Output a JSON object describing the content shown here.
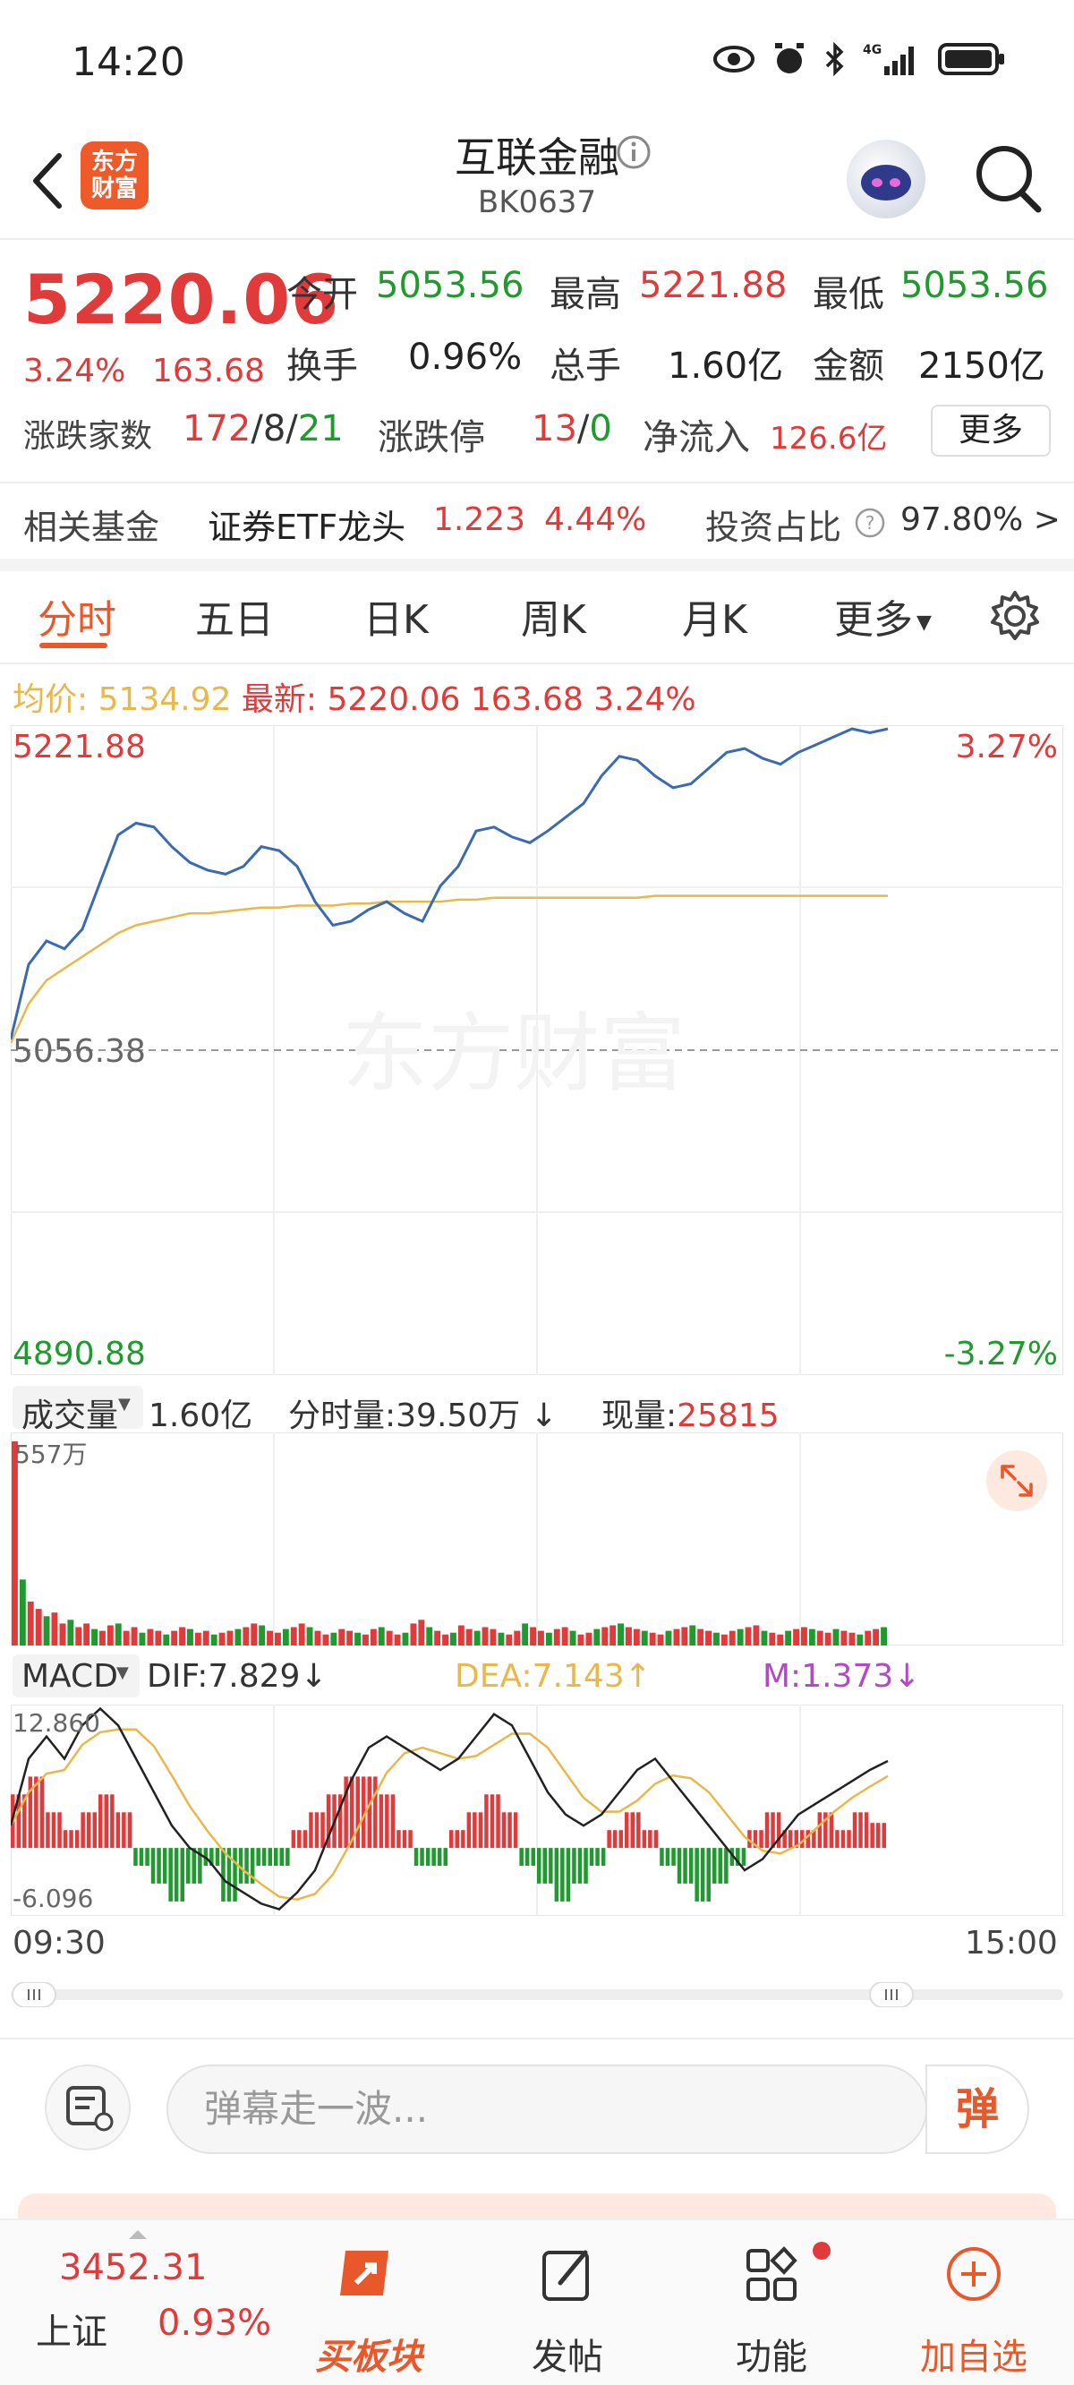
{
  "status_bar": {
    "time": "14:20",
    "network": "4G"
  },
  "header": {
    "title": "互联金融",
    "code": "BK0637",
    "logo_line1": "东方",
    "logo_line2": "财富"
  },
  "quote": {
    "price": "5220.06",
    "change_pct": "3.24%",
    "change_amt": "163.68",
    "open_label": "今开",
    "open": "5053.56",
    "high_label": "最高",
    "high": "5221.88",
    "low_label": "最低",
    "low": "5053.56",
    "turnover_label": "换手",
    "turnover": "0.96%",
    "volume_label": "总手",
    "volume": "1.60亿",
    "amount_label": "金额",
    "amount": "2150亿",
    "adv_dec_label": "涨跌家数",
    "adv": "172",
    "flat": "8",
    "dec": "21",
    "limit_label": "涨跌停",
    "limit_up": "13",
    "limit_down": "0",
    "netflow_label": "净流入",
    "netflow": "126.6亿",
    "more_label": "更多"
  },
  "fund": {
    "label": "相关基金",
    "name": "证券ETF龙头",
    "price": "1.223",
    "pct": "4.44%",
    "invest_label": "投资占比",
    "invest_val": "97.80% >"
  },
  "tabs": [
    "分时",
    "五日",
    "日K",
    "周K",
    "月K",
    "更多"
  ],
  "avg_info": {
    "avg_label": "均价:",
    "avg": "5134.92",
    "latest_label": "最新:",
    "latest": "5220.06",
    "chg": "163.68",
    "pct": "3.24%"
  },
  "main_chart": {
    "top_price": "5221.88",
    "top_pct": "3.27%",
    "mid_price": "5056.38",
    "bottom_price": "4890.88",
    "bottom_pct": "-3.27%",
    "watermark": "东方财富",
    "colors": {
      "price_line": "#3a6ab0",
      "avg_line": "#e8b84a"
    }
  },
  "volume": {
    "selector": "成交量",
    "total": "1.60亿",
    "minute_label": "分时量:",
    "minute": "39.50万",
    "current_label": "现量:",
    "current": "25815",
    "max_label": "557万"
  },
  "macd": {
    "selector": "MACD",
    "dif": "DIF:7.829",
    "dea": "DEA:7.143",
    "m": "M:1.373",
    "max_label": "12.860",
    "min_label": "-6.096"
  },
  "time_axis": {
    "start": "09:30",
    "end": "15:00"
  },
  "danmaku": {
    "placeholder": "弹幕走一波...",
    "send_label": "弹"
  },
  "bottom_nav": {
    "index_value": "3452.31",
    "index_name": "上证",
    "index_pct": "0.93%",
    "items": [
      "买板块",
      "发帖",
      "功能",
      "加自选"
    ]
  },
  "chart_data": [
    {
      "type": "line",
      "title": "",
      "series": [
        {
          "name": "最新",
          "values": [
            5062,
            5100,
            5112,
            5108,
            5118,
            5142,
            5166,
            5172,
            5170,
            5160,
            5152,
            5148,
            5146,
            5150,
            5160,
            5158,
            5150,
            5132,
            5120,
            5122,
            5128,
            5132,
            5126,
            5122,
            5140,
            5150,
            5168,
            5170,
            5165,
            5162,
            5168,
            5175,
            5182,
            5196,
            5206,
            5204,
            5196,
            5190,
            5192,
            5200,
            5208,
            5210,
            5205,
            5202,
            5208,
            5212,
            5216,
            5220,
            5218,
            5220
          ]
        },
        {
          "name": "均价",
          "values": [
            5060,
            5080,
            5092,
            5098,
            5104,
            5110,
            5116,
            5120,
            5122,
            5124,
            5126,
            5126,
            5127,
            5128,
            5129,
            5129,
            5130,
            5130,
            5130,
            5131,
            5131,
            5132,
            5132,
            5132,
            5132,
            5133,
            5133,
            5134,
            5134,
            5134,
            5134,
            5134,
            5134,
            5134,
            5134,
            5134,
            5135,
            5135,
            5135,
            5135,
            5135,
            5135,
            5135,
            5135,
            5135,
            5135,
            5135,
            5135,
            5135,
            5135
          ]
        }
      ],
      "ylim": [
        4890.88,
        5221.88
      ],
      "reference": 5056.38
    },
    {
      "type": "bar",
      "title": "",
      "values": [
        557,
        180,
        120,
        100,
        80,
        90,
        60,
        70,
        50,
        60,
        45,
        40,
        55,
        60,
        40,
        50,
        35,
        45,
        40,
        30,
        40,
        50,
        45,
        35,
        40,
        30,
        35,
        40,
        45,
        50,
        60,
        55,
        40,
        35,
        45,
        50,
        60,
        50,
        40,
        30,
        35,
        45,
        40,
        35,
        30,
        45,
        50,
        40,
        30,
        35,
        60,
        70,
        50,
        40,
        30,
        35,
        55,
        45,
        40,
        50,
        45,
        35,
        30,
        40,
        60,
        50,
        40,
        35,
        45,
        50,
        40,
        30,
        35,
        45,
        50,
        55,
        60,
        50,
        45,
        40,
        35,
        30,
        40,
        45,
        50,
        55,
        45,
        40,
        35,
        30,
        40,
        45,
        50,
        55,
        40,
        35,
        30,
        40,
        45,
        50,
        45,
        40,
        35,
        45,
        40,
        35,
        30,
        40,
        45,
        50
      ]
    },
    {
      "type": "bar",
      "title": "",
      "series": [
        {
          "name": "DIF",
          "values": [
            2,
            8,
            10,
            8,
            11,
            12.5,
            11,
            8,
            5,
            2,
            0,
            -1,
            -3,
            -4,
            -5,
            -5.5,
            -4,
            -2,
            2,
            6,
            9,
            10,
            9,
            8,
            7,
            8,
            10,
            12,
            11,
            8,
            5,
            3,
            2,
            3,
            5,
            7,
            8,
            6,
            4,
            2,
            0,
            -2,
            -1,
            1,
            3,
            4,
            5,
            6,
            7,
            7.8
          ]
        },
        {
          "name": "M",
          "values": [
            3,
            4,
            2,
            1,
            2,
            3,
            2,
            -1,
            -2,
            -3,
            -2,
            -1,
            -3,
            -2,
            -1,
            -1,
            1,
            2,
            3,
            4,
            4,
            3,
            1,
            -1,
            -1,
            1,
            2,
            3,
            2,
            -1,
            -2,
            -3,
            -2,
            -1,
            1,
            2,
            1,
            -1,
            -2,
            -3,
            -2,
            -1,
            1,
            2,
            1,
            1,
            2,
            1,
            2,
            1.4
          ]
        }
      ],
      "ylim": [
        -6.096,
        12.86
      ]
    }
  ]
}
